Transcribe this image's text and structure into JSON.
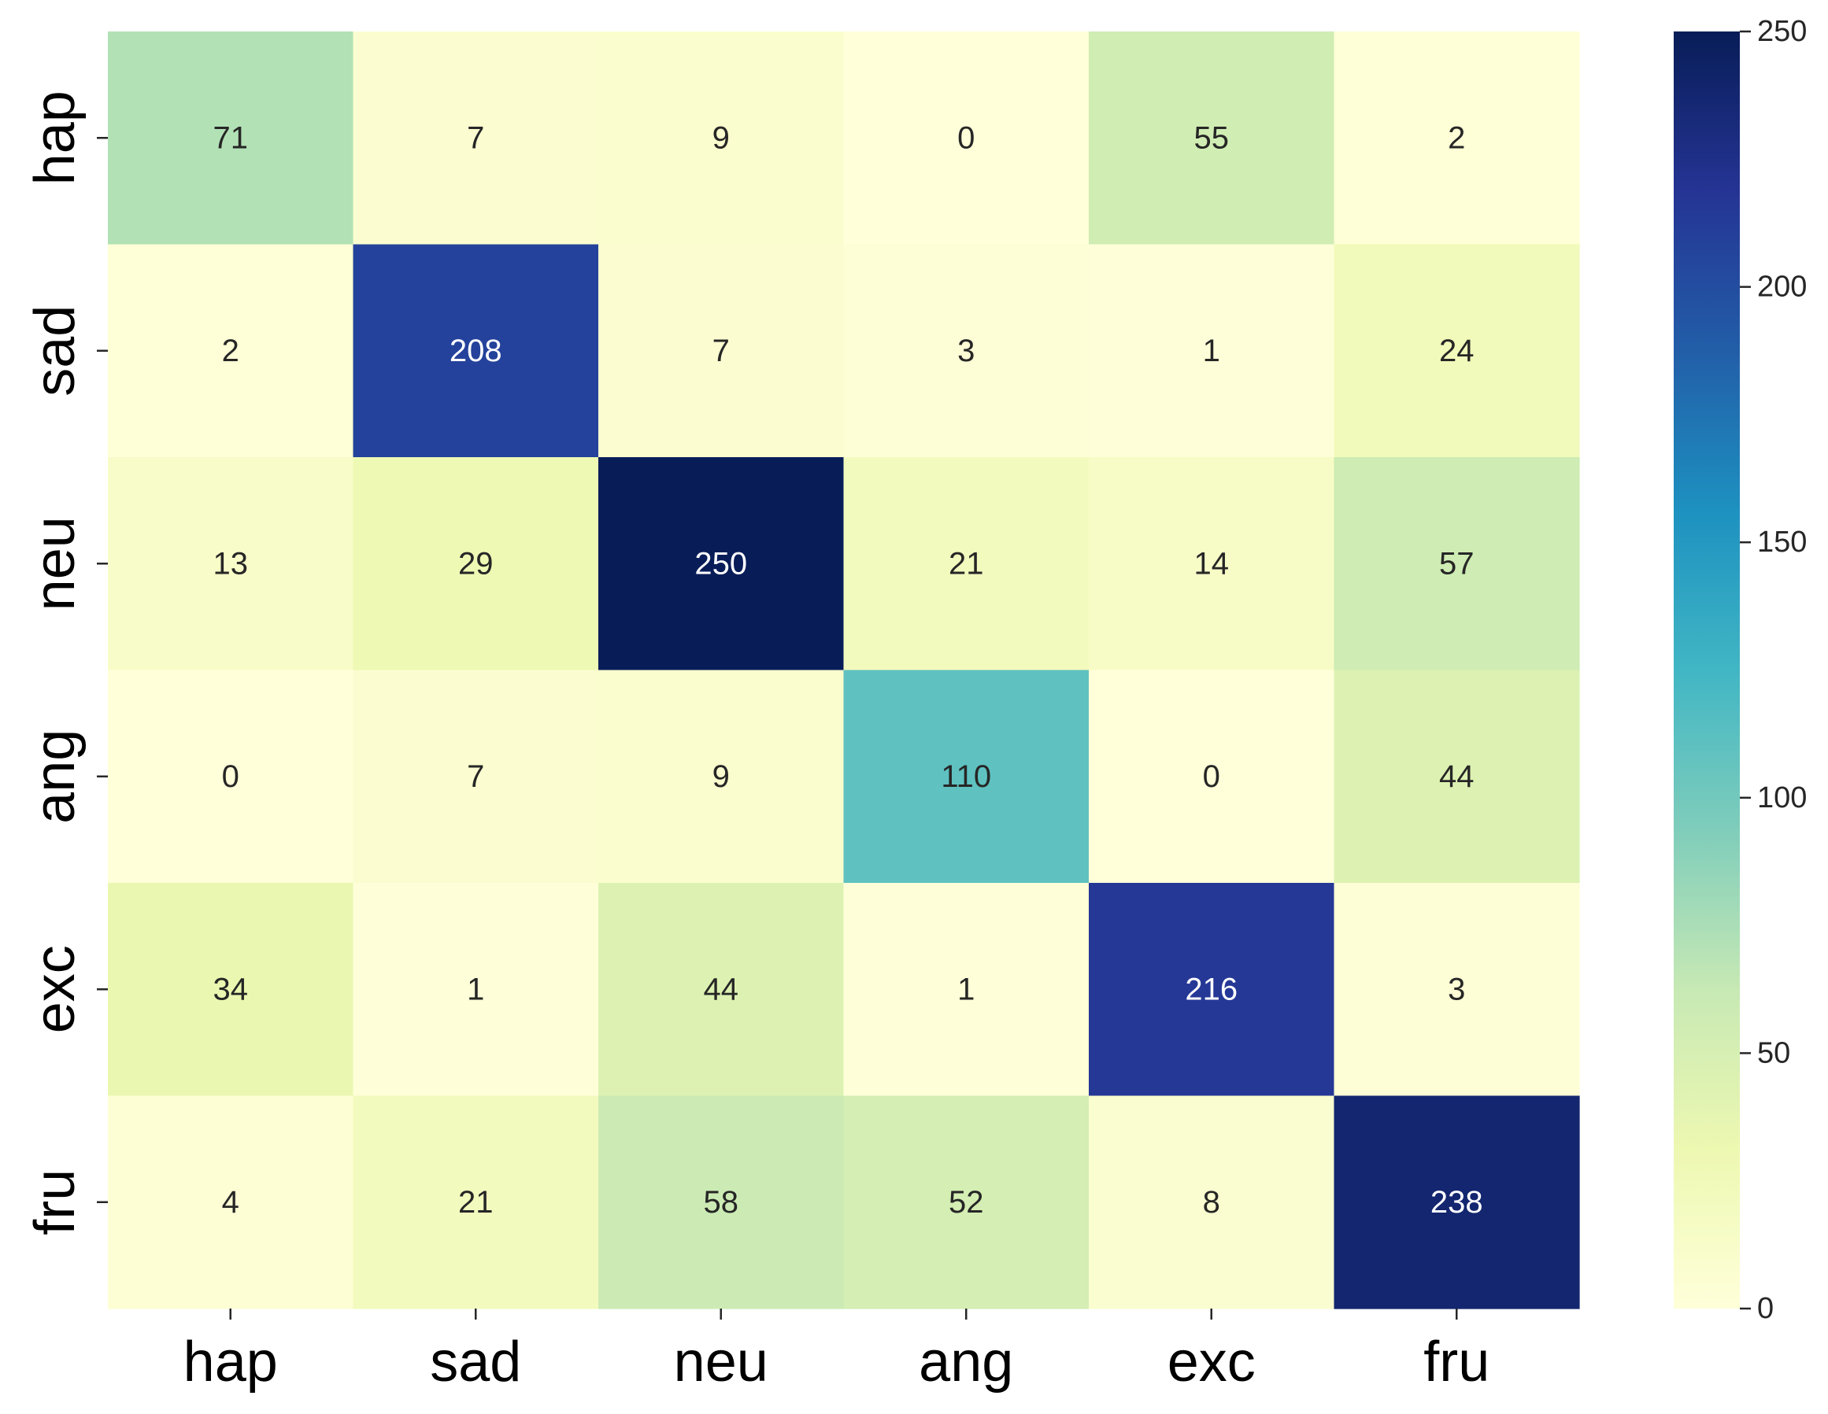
{
  "chart_data": {
    "type": "heatmap",
    "title": "",
    "xlabel": "",
    "ylabel": "",
    "x_categories": [
      "hap",
      "sad",
      "neu",
      "ang",
      "exc",
      "fru"
    ],
    "y_categories": [
      "hap",
      "sad",
      "neu",
      "ang",
      "exc",
      "fru"
    ],
    "values": [
      [
        71,
        7,
        9,
        0,
        55,
        2
      ],
      [
        2,
        208,
        7,
        3,
        1,
        24
      ],
      [
        13,
        29,
        250,
        21,
        14,
        57
      ],
      [
        0,
        7,
        9,
        110,
        0,
        44
      ],
      [
        34,
        1,
        44,
        1,
        216,
        3
      ],
      [
        4,
        21,
        58,
        52,
        8,
        238
      ]
    ],
    "colormap": "YlGnBu",
    "color_range": [
      0,
      250
    ],
    "colorbar": {
      "ticks": [
        0,
        50,
        100,
        150,
        200,
        250
      ],
      "tick_labels": [
        "0",
        "50",
        "100",
        "150",
        "200",
        "250"
      ],
      "position": "right"
    },
    "colorscale_stops": [
      "#ffffd9",
      "#edf8b1",
      "#c7e9b4",
      "#7fcdbb",
      "#41b6c4",
      "#1d91c0",
      "#225ea8",
      "#253494",
      "#081d58"
    ]
  }
}
